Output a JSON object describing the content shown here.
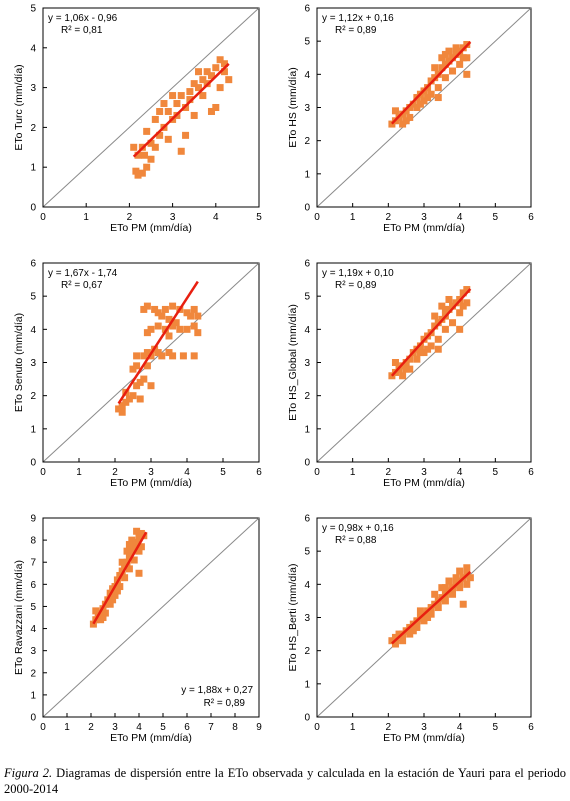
{
  "caption": {
    "label": "Figura 2.",
    "text": " Diagramas de dispersión entre la ETo observada y calculada en la estación de Yauri para el periodo 2000-2014"
  },
  "colors": {
    "points": "#F0873C",
    "fit_line": "#E81F10",
    "identity_line": "#8a8a8a"
  },
  "chart_data": [
    {
      "type": "scatter",
      "xlabel": "ETo PM (mm/día)",
      "ylabel": "ETo Turc",
      "ylabel_suffix": " (mm/día)",
      "xlim": [
        0,
        5
      ],
      "ylim": [
        0,
        5
      ],
      "ticks": [
        0,
        1,
        2,
        3,
        4,
        5
      ],
      "equation": "y = 1,06x - 0,96",
      "r2": "R² = 0,81",
      "fit": {
        "slope": 1.06,
        "intercept": -0.96,
        "x_range": [
          2.1,
          4.3
        ]
      },
      "identity_line": true,
      "grid": false,
      "points": [
        [
          2.1,
          1.5
        ],
        [
          2.2,
          1.3
        ],
        [
          2.15,
          0.9
        ],
        [
          2.2,
          0.8
        ],
        [
          2.3,
          0.85
        ],
        [
          2.4,
          1.0
        ],
        [
          2.3,
          1.5
        ],
        [
          2.5,
          1.6
        ],
        [
          2.4,
          1.9
        ],
        [
          2.6,
          1.5
        ],
        [
          2.7,
          1.8
        ],
        [
          2.6,
          2.2
        ],
        [
          2.8,
          2.0
        ],
        [
          2.9,
          2.4
        ],
        [
          3.0,
          2.2
        ],
        [
          3.1,
          2.6
        ],
        [
          3.2,
          2.8
        ],
        [
          3.3,
          2.5
        ],
        [
          3.4,
          2.9
        ],
        [
          3.5,
          3.1
        ],
        [
          3.6,
          3.0
        ],
        [
          3.7,
          3.2
        ],
        [
          3.8,
          3.4
        ],
        [
          3.9,
          3.3
        ],
        [
          4.0,
          3.5
        ],
        [
          4.1,
          3.7
        ],
        [
          4.2,
          3.4
        ],
        [
          4.3,
          3.2
        ],
        [
          3.2,
          1.4
        ],
        [
          3.9,
          2.4
        ],
        [
          4.0,
          2.5
        ],
        [
          3.5,
          2.3
        ],
        [
          3.3,
          1.8
        ],
        [
          2.8,
          2.6
        ],
        [
          3.0,
          2.8
        ],
        [
          2.9,
          1.7
        ],
        [
          3.6,
          3.4
        ],
        [
          3.8,
          3.1
        ],
        [
          2.5,
          1.2
        ],
        [
          4.2,
          3.6
        ],
        [
          3.4,
          2.7
        ],
        [
          3.1,
          2.3
        ],
        [
          2.7,
          2.4
        ],
        [
          4.1,
          3.0
        ],
        [
          2.35,
          1.3
        ],
        [
          3.7,
          2.8
        ]
      ]
    },
    {
      "type": "scatter",
      "xlabel": "ETo PM (mm/día)",
      "ylabel": "ETo HS",
      "ylabel_suffix": " (mm/día)",
      "xlim": [
        0,
        6
      ],
      "ylim": [
        0,
        6
      ],
      "ticks": [
        0,
        1,
        2,
        3,
        4,
        5,
        6
      ],
      "equation": "y = 1,12x + 0,16",
      "r2": "R² = 0,89",
      "fit": {
        "slope": 1.12,
        "intercept": 0.16,
        "x_range": [
          2.1,
          4.3
        ]
      },
      "identity_line": true,
      "grid": false,
      "points": [
        [
          2.1,
          2.5
        ],
        [
          2.2,
          2.6
        ],
        [
          2.3,
          2.7
        ],
        [
          2.4,
          2.8
        ],
        [
          2.5,
          2.9
        ],
        [
          2.6,
          3.0
        ],
        [
          2.7,
          3.1
        ],
        [
          2.8,
          3.3
        ],
        [
          2.9,
          3.4
        ],
        [
          3.0,
          3.5
        ],
        [
          3.1,
          3.6
        ],
        [
          3.2,
          3.8
        ],
        [
          3.3,
          3.9
        ],
        [
          3.4,
          4.0
        ],
        [
          3.5,
          4.2
        ],
        [
          3.6,
          4.3
        ],
        [
          3.7,
          4.4
        ],
        [
          3.8,
          4.5
        ],
        [
          3.9,
          4.6
        ],
        [
          4.0,
          4.7
        ],
        [
          4.1,
          4.8
        ],
        [
          4.2,
          4.9
        ],
        [
          2.4,
          2.5
        ],
        [
          2.6,
          2.7
        ],
        [
          2.8,
          3.0
        ],
        [
          3.0,
          3.2
        ],
        [
          3.2,
          3.4
        ],
        [
          3.4,
          3.6
        ],
        [
          3.6,
          3.9
        ],
        [
          3.8,
          4.1
        ],
        [
          4.0,
          4.3
        ],
        [
          4.2,
          4.5
        ],
        [
          3.3,
          4.2
        ],
        [
          3.5,
          4.5
        ],
        [
          3.1,
          3.3
        ],
        [
          2.9,
          3.1
        ],
        [
          3.7,
          4.7
        ],
        [
          3.9,
          4.8
        ],
        [
          4.2,
          4.0
        ],
        [
          3.6,
          4.6
        ],
        [
          2.2,
          2.9
        ],
        [
          3.4,
          3.3
        ],
        [
          2.5,
          2.6
        ],
        [
          4.1,
          4.5
        ]
      ]
    },
    {
      "type": "scatter",
      "xlabel": "ETo PM (mm/día)",
      "ylabel": "ETo Senuto",
      "ylabel_suffix": " (mm/día)",
      "xlim": [
        0,
        6
      ],
      "ylim": [
        0,
        6
      ],
      "ticks": [
        0,
        1,
        2,
        3,
        4,
        5,
        6
      ],
      "equation": "y = 1,67x - 1,74",
      "r2": "R² = 0,67",
      "fit": {
        "slope": 1.67,
        "intercept": -1.74,
        "x_range": [
          2.1,
          4.3
        ]
      },
      "identity_line": true,
      "grid": false,
      "points": [
        [
          2.1,
          1.6
        ],
        [
          2.2,
          1.7
        ],
        [
          2.3,
          1.8
        ],
        [
          2.4,
          1.9
        ],
        [
          2.5,
          2.0
        ],
        [
          2.6,
          2.3
        ],
        [
          2.7,
          2.4
        ],
        [
          2.8,
          2.5
        ],
        [
          3.0,
          2.3
        ],
        [
          2.5,
          2.8
        ],
        [
          2.6,
          2.9
        ],
        [
          2.8,
          3.2
        ],
        [
          2.9,
          3.3
        ],
        [
          3.0,
          3.2
        ],
        [
          3.1,
          3.4
        ],
        [
          3.2,
          3.3
        ],
        [
          3.3,
          3.2
        ],
        [
          3.5,
          3.3
        ],
        [
          3.6,
          3.2
        ],
        [
          3.9,
          3.2
        ],
        [
          4.2,
          3.2
        ],
        [
          2.9,
          3.9
        ],
        [
          3.0,
          4.0
        ],
        [
          3.2,
          4.1
        ],
        [
          3.4,
          4.0
        ],
        [
          3.6,
          4.1
        ],
        [
          3.8,
          4.0
        ],
        [
          4.0,
          4.0
        ],
        [
          4.2,
          4.1
        ],
        [
          4.3,
          3.9
        ],
        [
          2.8,
          4.6
        ],
        [
          2.9,
          4.7
        ],
        [
          3.1,
          4.6
        ],
        [
          3.2,
          4.5
        ],
        [
          3.4,
          4.6
        ],
        [
          3.6,
          4.7
        ],
        [
          3.8,
          4.6
        ],
        [
          4.0,
          4.5
        ],
        [
          4.2,
          4.6
        ],
        [
          4.3,
          4.4
        ],
        [
          3.5,
          4.3
        ],
        [
          3.3,
          4.4
        ],
        [
          2.3,
          2.1
        ],
        [
          2.9,
          2.9
        ],
        [
          3.7,
          4.2
        ],
        [
          4.1,
          4.4
        ],
        [
          2.6,
          3.2
        ],
        [
          3.5,
          3.8
        ],
        [
          2.2,
          1.5
        ],
        [
          2.7,
          1.9
        ]
      ]
    },
    {
      "type": "scatter",
      "xlabel": "ETo PM (mm/día)",
      "ylabel": "ETo HS_Global",
      "ylabel_suffix": " (mm/día)",
      "xlim": [
        0,
        6
      ],
      "ylim": [
        0,
        6
      ],
      "ticks": [
        0,
        1,
        2,
        3,
        4,
        5,
        6
      ],
      "equation": "y = 1,19x + 0,10",
      "r2": "R² = 0,89",
      "fit": {
        "slope": 1.19,
        "intercept": 0.1,
        "x_range": [
          2.1,
          4.3
        ]
      },
      "identity_line": true,
      "grid": false,
      "points": [
        [
          2.1,
          2.6
        ],
        [
          2.2,
          2.7
        ],
        [
          2.3,
          2.8
        ],
        [
          2.4,
          2.9
        ],
        [
          2.5,
          3.0
        ],
        [
          2.6,
          3.1
        ],
        [
          2.7,
          3.3
        ],
        [
          2.8,
          3.4
        ],
        [
          2.9,
          3.5
        ],
        [
          3.0,
          3.7
        ],
        [
          3.1,
          3.8
        ],
        [
          3.2,
          3.9
        ],
        [
          3.3,
          4.1
        ],
        [
          3.4,
          4.2
        ],
        [
          3.5,
          4.3
        ],
        [
          3.6,
          4.4
        ],
        [
          3.7,
          4.6
        ],
        [
          3.8,
          4.7
        ],
        [
          3.9,
          4.8
        ],
        [
          4.0,
          4.9
        ],
        [
          4.1,
          5.1
        ],
        [
          4.2,
          5.2
        ],
        [
          2.4,
          2.6
        ],
        [
          2.6,
          2.8
        ],
        [
          2.8,
          3.1
        ],
        [
          3.0,
          3.3
        ],
        [
          3.2,
          3.5
        ],
        [
          3.4,
          3.7
        ],
        [
          3.6,
          4.0
        ],
        [
          3.8,
          4.2
        ],
        [
          4.0,
          4.5
        ],
        [
          4.2,
          4.8
        ],
        [
          3.3,
          4.4
        ],
        [
          3.5,
          4.7
        ],
        [
          3.1,
          3.4
        ],
        [
          2.9,
          3.3
        ],
        [
          3.7,
          4.9
        ],
        [
          4.0,
          4.0
        ],
        [
          2.2,
          3.0
        ],
        [
          3.6,
          4.6
        ],
        [
          2.5,
          2.8
        ],
        [
          4.1,
          4.7
        ],
        [
          3.4,
          3.4
        ]
      ]
    },
    {
      "type": "scatter",
      "xlabel": "ETo PM (mm/día)",
      "ylabel": "ETo Ravazzani",
      "ylabel_suffix": " (mm/día)",
      "xlim": [
        0,
        9
      ],
      "ylim": [
        0,
        9
      ],
      "ticks": [
        0,
        1,
        2,
        3,
        4,
        5,
        6,
        7,
        8,
        9
      ],
      "equation": "y = 1,88x + 0,27",
      "r2": "R² = 0,89",
      "fit": {
        "slope": 1.88,
        "intercept": 0.27,
        "x_range": [
          2.1,
          4.3
        ]
      },
      "identity_line": true,
      "grid": false,
      "points": [
        [
          2.1,
          4.2
        ],
        [
          2.2,
          4.4
        ],
        [
          2.3,
          4.6
        ],
        [
          2.4,
          4.7
        ],
        [
          2.5,
          4.9
        ],
        [
          2.6,
          5.1
        ],
        [
          2.7,
          5.3
        ],
        [
          2.8,
          5.6
        ],
        [
          2.9,
          5.8
        ],
        [
          3.0,
          5.9
        ],
        [
          3.1,
          6.2
        ],
        [
          3.2,
          6.4
        ],
        [
          3.3,
          6.6
        ],
        [
          3.4,
          6.8
        ],
        [
          3.5,
          7.0
        ],
        [
          3.6,
          7.3
        ],
        [
          3.7,
          7.5
        ],
        [
          3.8,
          7.7
        ],
        [
          3.9,
          7.9
        ],
        [
          4.0,
          8.1
        ],
        [
          4.1,
          8.3
        ],
        [
          4.2,
          8.2
        ],
        [
          2.4,
          4.4
        ],
        [
          2.6,
          4.7
        ],
        [
          2.8,
          5.1
        ],
        [
          3.0,
          5.5
        ],
        [
          3.2,
          5.9
        ],
        [
          3.4,
          6.3
        ],
        [
          3.6,
          6.7
        ],
        [
          3.8,
          7.1
        ],
        [
          4.0,
          7.5
        ],
        [
          3.3,
          7.0
        ],
        [
          3.5,
          7.5
        ],
        [
          3.1,
          5.7
        ],
        [
          2.9,
          5.3
        ],
        [
          3.7,
          8.0
        ],
        [
          4.0,
          6.5
        ],
        [
          2.2,
          4.8
        ],
        [
          3.9,
          8.4
        ],
        [
          3.6,
          7.8
        ],
        [
          2.5,
          4.5
        ],
        [
          4.1,
          7.7
        ]
      ]
    },
    {
      "type": "scatter",
      "xlabel": "ETo PM (mm/día)",
      "ylabel": "ETo HS_Berti",
      "ylabel_suffix": " (mm/día)",
      "xlim": [
        0,
        6
      ],
      "ylim": [
        0,
        6
      ],
      "ticks": [
        0,
        1,
        2,
        3,
        4,
        5,
        6
      ],
      "equation": "y = 0,98x + 0,16",
      "r2": "R² = 0,88",
      "fit": {
        "slope": 0.98,
        "intercept": 0.16,
        "x_range": [
          2.1,
          4.3
        ]
      },
      "identity_line": true,
      "grid": false,
      "points": [
        [
          2.1,
          2.3
        ],
        [
          2.2,
          2.4
        ],
        [
          2.3,
          2.5
        ],
        [
          2.4,
          2.5
        ],
        [
          2.5,
          2.6
        ],
        [
          2.6,
          2.7
        ],
        [
          2.7,
          2.8
        ],
        [
          2.8,
          2.9
        ],
        [
          2.9,
          3.0
        ],
        [
          3.0,
          3.1
        ],
        [
          3.1,
          3.2
        ],
        [
          3.2,
          3.3
        ],
        [
          3.3,
          3.4
        ],
        [
          3.4,
          3.5
        ],
        [
          3.5,
          3.6
        ],
        [
          3.6,
          3.7
        ],
        [
          3.7,
          3.8
        ],
        [
          3.8,
          3.9
        ],
        [
          3.9,
          4.0
        ],
        [
          4.0,
          4.1
        ],
        [
          4.1,
          4.2
        ],
        [
          4.2,
          4.3
        ],
        [
          4.3,
          4.2
        ],
        [
          2.4,
          2.3
        ],
        [
          2.6,
          2.5
        ],
        [
          2.8,
          2.7
        ],
        [
          3.0,
          2.9
        ],
        [
          3.2,
          3.1
        ],
        [
          3.4,
          3.3
        ],
        [
          3.6,
          3.5
        ],
        [
          3.8,
          3.7
        ],
        [
          4.0,
          3.9
        ],
        [
          4.2,
          4.0
        ],
        [
          3.3,
          3.7
        ],
        [
          3.5,
          3.9
        ],
        [
          3.1,
          3.0
        ],
        [
          2.9,
          3.2
        ],
        [
          3.7,
          4.1
        ],
        [
          3.9,
          4.2
        ],
        [
          4.1,
          3.4
        ],
        [
          4.2,
          4.5
        ],
        [
          2.2,
          2.2
        ],
        [
          3.6,
          3.9
        ],
        [
          2.7,
          2.6
        ],
        [
          4.0,
          4.4
        ]
      ]
    }
  ]
}
